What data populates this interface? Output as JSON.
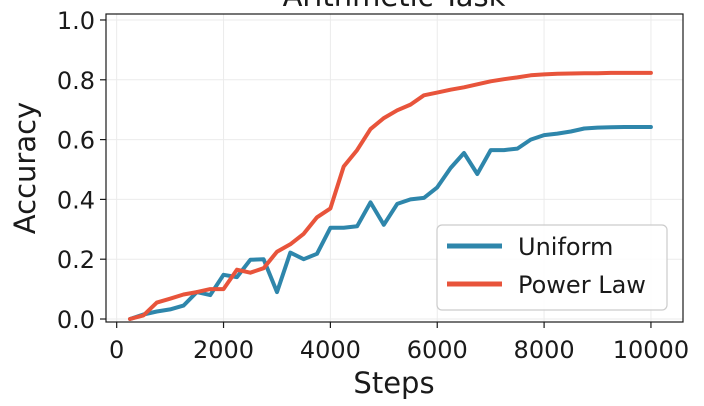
{
  "chart_data": {
    "type": "line",
    "title": "Arithmetic Task",
    "xlabel": "Steps",
    "ylabel": "Accuracy",
    "xlim": [
      -200,
      10600
    ],
    "ylim": [
      -0.01,
      1.02
    ],
    "x_ticks": [
      0,
      2000,
      4000,
      6000,
      8000,
      10000
    ],
    "y_ticks": [
      0.0,
      0.2,
      0.4,
      0.6,
      0.8,
      1.0
    ],
    "x_tick_labels": [
      "0",
      "2000",
      "4000",
      "6000",
      "8000",
      "10000"
    ],
    "y_tick_labels": [
      "0.0",
      "0.2",
      "0.4",
      "0.6",
      "0.8",
      "1.0"
    ],
    "grid": true,
    "legend_position": "bottom-right",
    "x": [
      250,
      500,
      750,
      1000,
      1250,
      1500,
      1750,
      2000,
      2250,
      2500,
      2750,
      3000,
      3250,
      3500,
      3750,
      4000,
      4250,
      4500,
      4750,
      5000,
      5250,
      5500,
      5750,
      6000,
      6250,
      6500,
      6750,
      7000,
      7250,
      7500,
      7750,
      8000,
      8250,
      8500,
      8750,
      9000,
      9250,
      9500,
      9750,
      10000
    ],
    "series": [
      {
        "name": "Uniform",
        "color": "#2e86ab",
        "values": [
          0.0,
          0.015,
          0.025,
          0.032,
          0.045,
          0.09,
          0.08,
          0.148,
          0.14,
          0.198,
          0.2,
          0.09,
          0.222,
          0.2,
          0.218,
          0.305,
          0.305,
          0.31,
          0.39,
          0.315,
          0.385,
          0.4,
          0.405,
          0.44,
          0.505,
          0.555,
          0.485,
          0.565,
          0.565,
          0.57,
          0.6,
          0.615,
          0.62,
          0.627,
          0.637,
          0.64,
          0.641,
          0.642,
          0.642,
          0.642
        ]
      },
      {
        "name": "Power Law",
        "color": "#e8543b",
        "values": [
          0.0,
          0.012,
          0.055,
          0.068,
          0.082,
          0.09,
          0.1,
          0.1,
          0.165,
          0.155,
          0.17,
          0.225,
          0.25,
          0.285,
          0.34,
          0.37,
          0.51,
          0.565,
          0.635,
          0.672,
          0.698,
          0.717,
          0.748,
          0.757,
          0.767,
          0.775,
          0.785,
          0.795,
          0.802,
          0.808,
          0.815,
          0.818,
          0.82,
          0.821,
          0.822,
          0.822,
          0.823,
          0.823,
          0.823,
          0.823
        ]
      }
    ]
  }
}
